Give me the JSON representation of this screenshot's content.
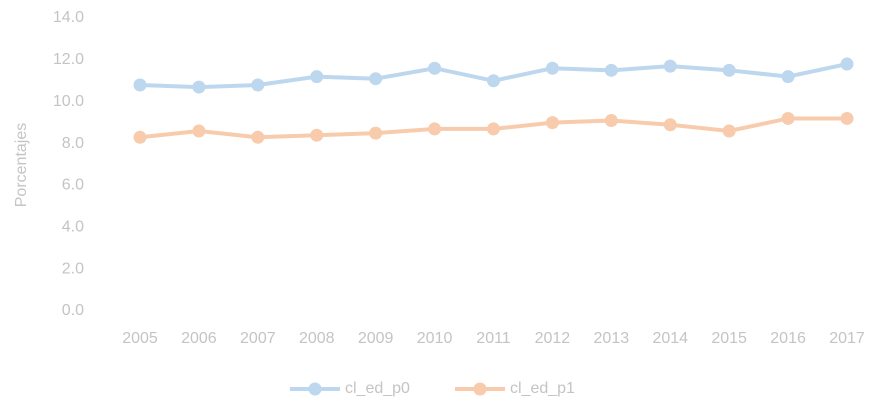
{
  "chart_data": {
    "type": "line",
    "y_label": "Porcentajes",
    "categories": [
      "2005",
      "2006",
      "2007",
      "2008",
      "2009",
      "2010",
      "2011",
      "2012",
      "2013",
      "2014",
      "2015",
      "2016",
      "2017"
    ],
    "series": [
      {
        "name": "cl_ed_p0",
        "color": "#bdd7ee",
        "values": [
          10.8,
          10.7,
          10.8,
          11.2,
          11.1,
          11.6,
          11.0,
          11.6,
          11.5,
          11.7,
          11.5,
          11.2,
          11.8
        ]
      },
      {
        "name": "cl_ed_p1",
        "color": "#f8cbad",
        "values": [
          8.3,
          8.6,
          8.3,
          8.4,
          8.5,
          8.7,
          8.7,
          9.0,
          9.1,
          8.9,
          8.6,
          9.2,
          9.2
        ]
      }
    ],
    "ylim": [
      0,
      14
    ],
    "yticks": [
      {
        "value": 0,
        "label": "0.0"
      },
      {
        "value": 2,
        "label": "2.0"
      },
      {
        "value": 4,
        "label": "4.0"
      },
      {
        "value": 6,
        "label": "6.0"
      },
      {
        "value": 8,
        "label": "8.0"
      },
      {
        "value": 10,
        "label": "10.0"
      },
      {
        "value": 12,
        "label": "12.0"
      },
      {
        "value": 14,
        "label": "14.0"
      }
    ],
    "grid": false,
    "legend": "bottom"
  }
}
